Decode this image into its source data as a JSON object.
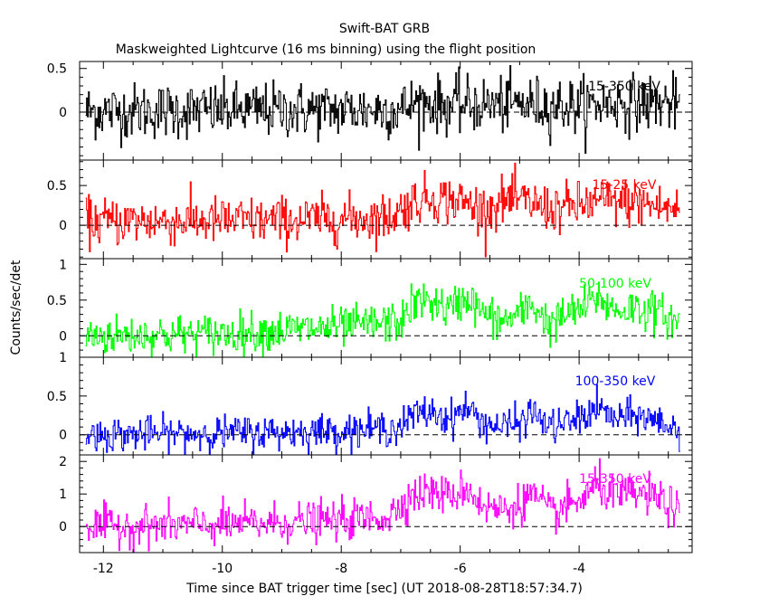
{
  "figure": {
    "title": "Swift-BAT GRB",
    "subtitle": "Maskweighted Lightcurve (16 ms binning) using the flight position",
    "xlabel": "Time since BAT trigger time [sec] (UT 2018-08-28T18:57:34.7)",
    "ylabel": "Counts/sec/det"
  },
  "colors": {
    "axis": "#000000",
    "black": "#000000",
    "red": "#ff0000",
    "green": "#00ff00",
    "blue": "#0000ff",
    "magenta": "#ff00ff"
  },
  "chart_data": [
    {
      "type": "line",
      "band": "15-350 keV",
      "color": "#000000",
      "xlim": [
        -12.4,
        -2.1
      ],
      "ylim": [
        -0.55,
        0.58
      ],
      "yticks": [
        0,
        0.5
      ],
      "ytick_labels": [
        "0",
        "0.5"
      ],
      "xticks": [
        -12,
        -10,
        -8,
        -6,
        -4
      ],
      "zero_line": true,
      "x_start": -12.3,
      "x_end": -2.3,
      "bin": 0.016,
      "profile": [
        [
          -12.3,
          0.01
        ],
        [
          -7.0,
          0.03
        ],
        [
          -6.7,
          0.12
        ],
        [
          -6.3,
          0.08
        ],
        [
          -5.0,
          0.09
        ],
        [
          -3.9,
          0.07
        ],
        [
          -3.4,
          0.11
        ],
        [
          -2.3,
          0.1
        ]
      ],
      "noise": 0.16
    },
    {
      "type": "line",
      "band": "15-25 keV",
      "color": "#ff0000",
      "xlim": [
        -12.4,
        -2.1
      ],
      "ylim": [
        -0.42,
        0.82
      ],
      "yticks": [
        0,
        0.5
      ],
      "ytick_labels": [
        "0",
        "0.5"
      ],
      "xticks": [
        -12,
        -10,
        -8,
        -6,
        -4
      ],
      "zero_line": true,
      "x_start": -12.3,
      "x_end": -2.3,
      "bin": 0.016,
      "profile": [
        [
          -12.3,
          0.05
        ],
        [
          -9.0,
          0.06
        ],
        [
          -7.2,
          0.1
        ],
        [
          -6.8,
          0.3
        ],
        [
          -6.5,
          0.35
        ],
        [
          -6.0,
          0.3
        ],
        [
          -5.6,
          0.2
        ],
        [
          -5.2,
          0.32
        ],
        [
          -4.8,
          0.28
        ],
        [
          -4.5,
          0.2
        ],
        [
          -4.0,
          0.25
        ],
        [
          -3.6,
          0.3
        ],
        [
          -3.0,
          0.28
        ],
        [
          -2.3,
          0.18
        ]
      ],
      "noise": 0.15
    },
    {
      "type": "line",
      "band": "50-100 keV",
      "color": "#00ff00",
      "xlim": [
        -12.4,
        -2.1
      ],
      "ylim": [
        -0.3,
        1.08
      ],
      "yticks": [
        0,
        0.5,
        1
      ],
      "ytick_labels": [
        "0",
        "0.5",
        "1"
      ],
      "xticks": [
        -12,
        -10,
        -8,
        -6,
        -4
      ],
      "zero_line": true,
      "x_start": -12.3,
      "x_end": -2.3,
      "bin": 0.016,
      "profile": [
        [
          -12.3,
          0.0
        ],
        [
          -10.0,
          0.03
        ],
        [
          -8.0,
          0.12
        ],
        [
          -7.0,
          0.2
        ],
        [
          -6.8,
          0.45
        ],
        [
          -6.5,
          0.5
        ],
        [
          -6.2,
          0.35
        ],
        [
          -5.9,
          0.55
        ],
        [
          -5.6,
          0.3
        ],
        [
          -5.3,
          0.2
        ],
        [
          -5.0,
          0.3
        ],
        [
          -4.8,
          0.45
        ],
        [
          -4.5,
          0.15
        ],
        [
          -4.2,
          0.3
        ],
        [
          -3.9,
          0.4
        ],
        [
          -3.7,
          0.55
        ],
        [
          -3.4,
          0.35
        ],
        [
          -3.0,
          0.4
        ],
        [
          -2.6,
          0.3
        ],
        [
          -2.3,
          0.15
        ]
      ],
      "noise": 0.14
    },
    {
      "type": "line",
      "band": "100-350 keV",
      "color": "#0000ff",
      "xlim": [
        -12.4,
        -2.1
      ],
      "ylim": [
        -0.26,
        1.0
      ],
      "yticks": [
        0,
        0.5,
        1
      ],
      "ytick_labels": [
        "0",
        "0.5",
        "1"
      ],
      "xticks": [
        -12,
        -10,
        -8,
        -6,
        -4
      ],
      "zero_line": true,
      "x_start": -12.3,
      "x_end": -2.3,
      "bin": 0.016,
      "profile": [
        [
          -12.3,
          0.0
        ],
        [
          -10.0,
          0.02
        ],
        [
          -8.0,
          0.05
        ],
        [
          -7.0,
          0.1
        ],
        [
          -6.8,
          0.25
        ],
        [
          -6.5,
          0.3
        ],
        [
          -6.2,
          0.2
        ],
        [
          -5.9,
          0.35
        ],
        [
          -5.6,
          0.15
        ],
        [
          -5.3,
          0.1
        ],
        [
          -5.0,
          0.15
        ],
        [
          -4.8,
          0.3
        ],
        [
          -4.5,
          0.1
        ],
        [
          -4.2,
          0.15
        ],
        [
          -3.9,
          0.25
        ],
        [
          -3.7,
          0.35
        ],
        [
          -3.4,
          0.2
        ],
        [
          -3.0,
          0.25
        ],
        [
          -2.6,
          0.15
        ],
        [
          -2.3,
          0.05
        ]
      ],
      "noise": 0.11
    },
    {
      "type": "line",
      "band": "15-350 keV",
      "color": "#ff00ff",
      "xlim": [
        -12.4,
        -2.1
      ],
      "ylim": [
        -0.8,
        2.2
      ],
      "yticks": [
        0,
        1,
        2
      ],
      "ytick_labels": [
        "0",
        "1",
        "2"
      ],
      "xticks": [
        -12,
        -10,
        -8,
        -6,
        -4
      ],
      "zero_line": true,
      "x_start": -12.3,
      "x_end": -2.3,
      "bin": 0.016,
      "profile": [
        [
          -12.3,
          0.0
        ],
        [
          -10.0,
          0.05
        ],
        [
          -8.0,
          0.2
        ],
        [
          -7.2,
          0.3
        ],
        [
          -6.9,
          0.9
        ],
        [
          -6.5,
          1.1
        ],
        [
          -6.2,
          0.9
        ],
        [
          -5.9,
          1.2
        ],
        [
          -5.6,
          0.6
        ],
        [
          -5.3,
          0.5
        ],
        [
          -5.0,
          0.7
        ],
        [
          -4.8,
          1.0
        ],
        [
          -4.5,
          0.4
        ],
        [
          -4.2,
          0.6
        ],
        [
          -3.9,
          0.9
        ],
        [
          -3.7,
          1.3
        ],
        [
          -3.4,
          0.9
        ],
        [
          -3.0,
          1.0
        ],
        [
          -2.6,
          0.8
        ],
        [
          -2.3,
          0.4
        ]
      ],
      "noise": 0.3
    }
  ],
  "xtick_labels": [
    "-12",
    "-10",
    "-8",
    "-6",
    "-4"
  ]
}
